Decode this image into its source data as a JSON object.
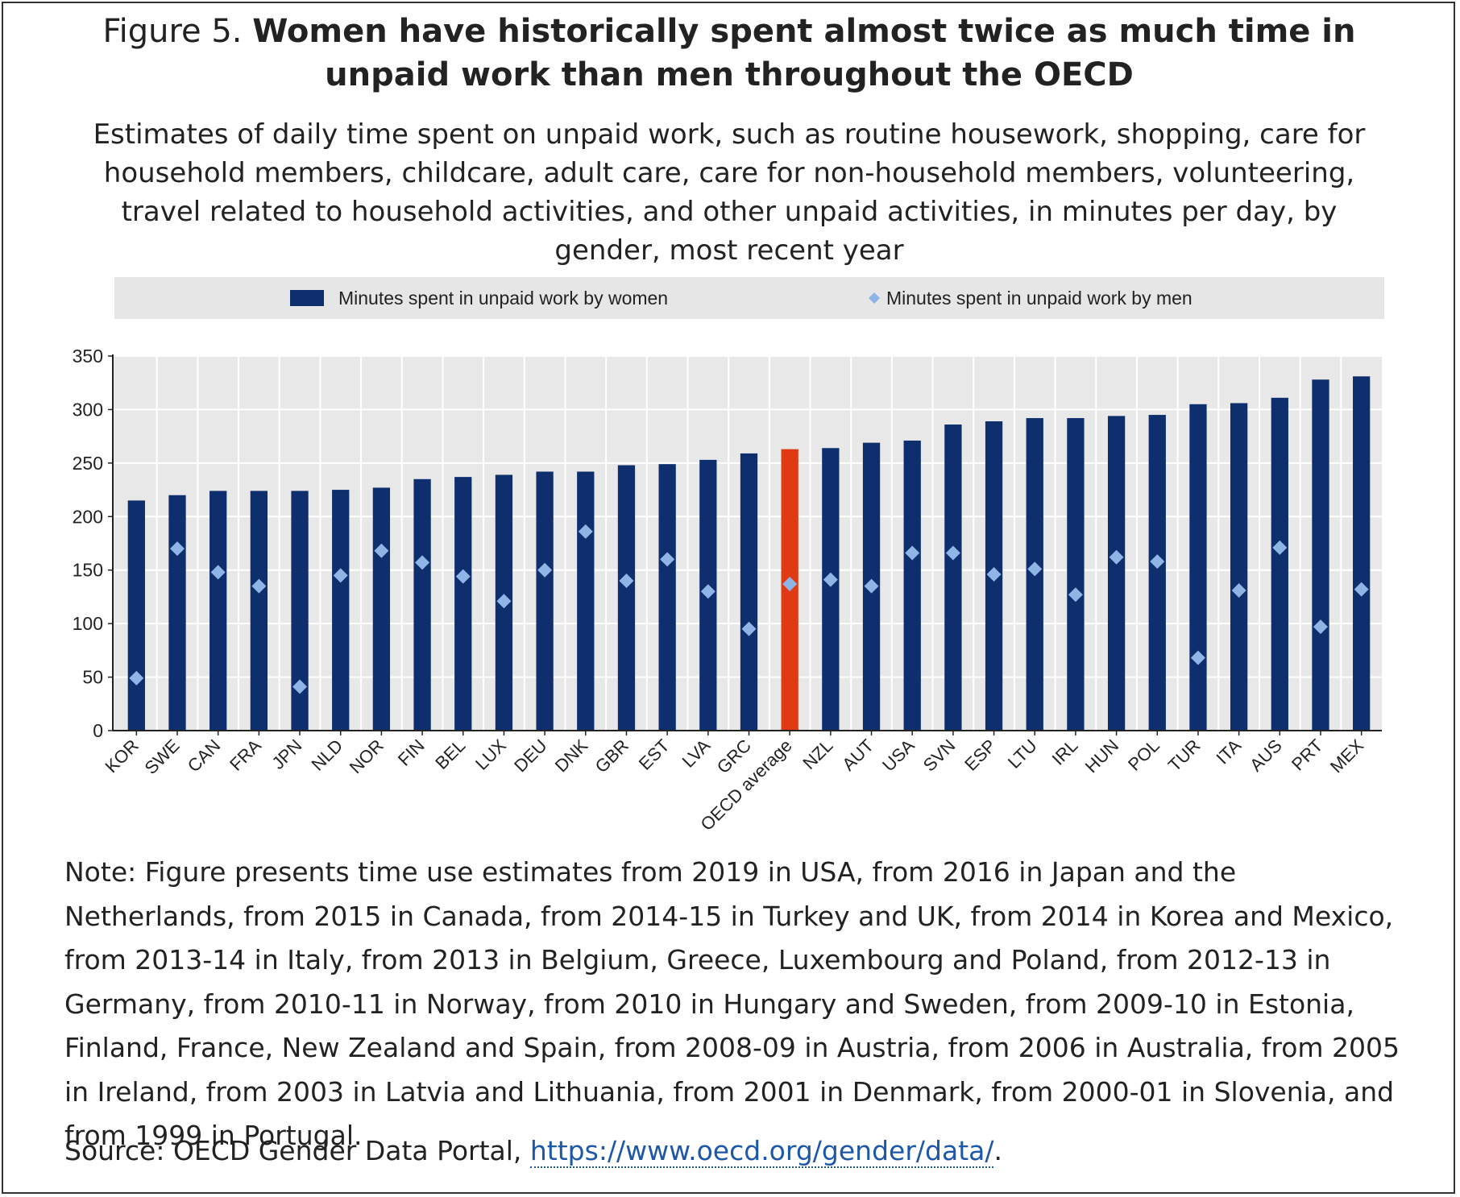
{
  "figure": {
    "prefix": "Figure 5.",
    "title": "Women have historically spent almost twice as much time in unpaid work than men throughout the OECD",
    "subtitle": "Estimates of daily time spent on unpaid work, such as routine housework, shopping, care for household members, childcare, adult care, care for non-household members, volunteering, travel related to household activities, and other unpaid activities, in minutes per day, by gender, most recent year",
    "note": "Note: Figure presents time use estimates from 2019 in USA, from 2016 in Japan and the Netherlands, from 2015 in Canada, from 2014-15 in Turkey and UK, from 2014 in Korea and Mexico, from 2013-14 in Italy, from 2013 in Belgium, Greece, Luxembourg and Poland, from 2012-13 in Germany, from 2010-11 in Norway, from 2010 in Hungary and Sweden, from 2009-10 in Estonia, Finland, France, New Zealand and Spain, from 2008-09 in Austria, from 2006 in Australia, from 2005 in Ireland, from 2003 in Latvia and Lithuania, from 2001 in Denmark, from 2000-01 in Slovenia, and from 1999 in Portugal.",
    "source_prefix": "Source: OECD Gender Data Portal, ",
    "source_link": "https://www.oecd.org/gender/data/",
    "source_suffix": "."
  },
  "colors": {
    "women_bar": "#0f2e6e",
    "average_bar": "#e03a14",
    "men_marker": "#8fb5e6",
    "plot_bg": "#e8e8e8",
    "legend_bg": "#e6e6e6"
  },
  "chart_data": {
    "type": "bar",
    "categories": [
      "KOR",
      "SWE",
      "CAN",
      "FRA",
      "JPN",
      "NLD",
      "NOR",
      "FIN",
      "BEL",
      "LUX",
      "DEU",
      "DNK",
      "GBR",
      "EST",
      "LVA",
      "GRC",
      "OECD average",
      "NZL",
      "AUT",
      "USA",
      "SVN",
      "ESP",
      "LTU",
      "IRL",
      "HUN",
      "POL",
      "TUR",
      "ITA",
      "AUS",
      "PRT",
      "MEX"
    ],
    "series": [
      {
        "name": "Minutes spent in unpaid work by women",
        "kind": "bar",
        "values": [
          215,
          220,
          224,
          224,
          224,
          225,
          227,
          235,
          237,
          239,
          242,
          242,
          248,
          249,
          253,
          259,
          263,
          264,
          269,
          271,
          286,
          289,
          292,
          292,
          294,
          295,
          305,
          306,
          311,
          328,
          331
        ]
      },
      {
        "name": "Minutes spent in unpaid work by men",
        "kind": "marker",
        "values": [
          49,
          170,
          148,
          135,
          41,
          145,
          168,
          157,
          144,
          121,
          150,
          186,
          140,
          160,
          130,
          95,
          137,
          141,
          135,
          166,
          166,
          146,
          151,
          127,
          162,
          158,
          68,
          131,
          171,
          97,
          132
        ]
      }
    ],
    "highlight_category": "OECD average",
    "ylim": [
      0,
      350
    ],
    "yticks": [
      0,
      50,
      100,
      150,
      200,
      250,
      300,
      350
    ],
    "xlabel": "",
    "ylabel": "",
    "legend_position": "top"
  }
}
